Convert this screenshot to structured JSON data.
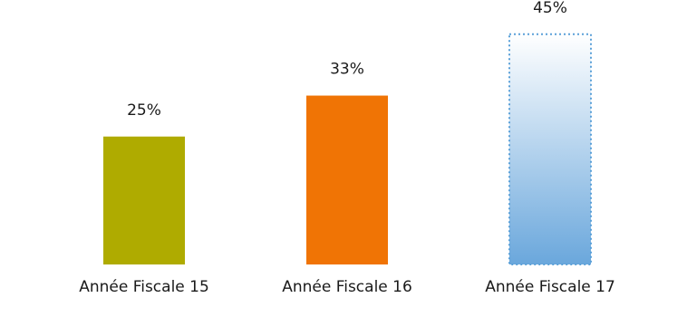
{
  "chart_data": {
    "type": "bar",
    "title": "",
    "xlabel": "",
    "ylabel": "",
    "categories": [
      "Année Fiscale 15",
      "Année Fiscale 16",
      "Année Fiscale 17"
    ],
    "values": [
      25,
      33,
      45
    ],
    "data_labels": [
      "25%",
      "33%",
      "45%"
    ],
    "unit": "%",
    "ylim": [
      0,
      50
    ],
    "grid": false,
    "legend": "none",
    "colors": [
      "#afab00",
      "#f07405",
      "#6aa7dc"
    ],
    "highlight": {
      "index": 2,
      "fill": "gradient",
      "gradient_from": "#6aa7dc",
      "gradient_to": "#ffffff",
      "outline": "dotted",
      "outline_color": "#5aa0d8"
    }
  }
}
